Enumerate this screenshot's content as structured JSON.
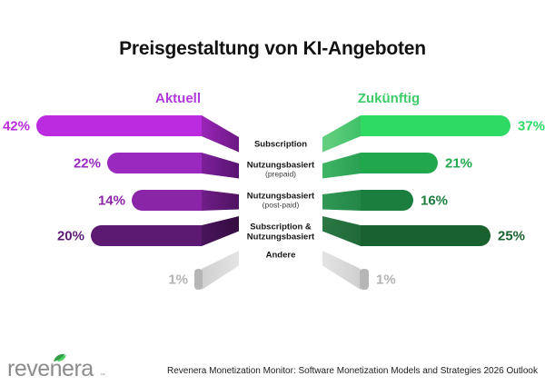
{
  "title": "Preisgestaltung von KI-Angeboten",
  "columns": {
    "left": {
      "header": "Aktuell",
      "color": "#b138de"
    },
    "right": {
      "header": "Zukünftig",
      "color": "#3ecb69"
    }
  },
  "rows": [
    {
      "category": {
        "lines": [
          "Subscription"
        ],
        "sub": ""
      },
      "left": {
        "pct": "42%",
        "color": "#bb2ce0",
        "fold": [
          "#9a25b8",
          "#6b1982"
        ],
        "gray": false
      },
      "right": {
        "pct": "37%",
        "color": "#2ed964",
        "fold": [
          "#67d082",
          "#3fc167"
        ],
        "gray": false
      }
    },
    {
      "category": {
        "lines": [
          "Nutzungsbasiert"
        ],
        "sub": "(prepaid)"
      },
      "left": {
        "pct": "22%",
        "color": "#9a29bf",
        "fold": [
          "#7d1f9b",
          "#581470"
        ],
        "gray": false
      },
      "right": {
        "pct": "21%",
        "color": "#21a84d",
        "fold": [
          "#3db565",
          "#2aa052"
        ],
        "gray": false
      }
    },
    {
      "category": {
        "lines": [
          "Nutzungsbasiert"
        ],
        "sub": "(post-paid)"
      },
      "left": {
        "pct": "14%",
        "color": "#8b25a8",
        "fold": [
          "#701e88",
          "#4e1260"
        ],
        "gray": false
      },
      "right": {
        "pct": "16%",
        "color": "#1b7e3e",
        "fold": [
          "#309955",
          "#228647"
        ],
        "gray": false
      }
    },
    {
      "category": {
        "lines": [
          "Subscription &",
          "Nutzungsbasiert"
        ],
        "sub": ""
      },
      "left": {
        "pct": "20%",
        "color": "#5c1a73",
        "fold": [
          "#49145b",
          "#340d41"
        ],
        "gray": false
      },
      "right": {
        "pct": "25%",
        "color": "#1a6130",
        "fold": [
          "#2c7844",
          "#1f6a38"
        ],
        "gray": false
      }
    },
    {
      "category": {
        "lines": [
          "Andere"
        ],
        "sub": ""
      },
      "left": {
        "pct": "1%",
        "color": "#b6b6b6",
        "fold": [
          "#cfcfcf",
          "#e4e4e4"
        ],
        "gray": true
      },
      "right": {
        "pct": "1%",
        "color": "#b6b6b6",
        "fold": [
          "#e4e4e4",
          "#cfcfcf"
        ],
        "gray": true
      }
    }
  ],
  "gray_label_color": "#b3b3b3",
  "footer": {
    "logo_text": "revenera",
    "logo_mark": "™",
    "source": "Revenera Monetization Monitor: Software Monetization Models and Strategies 2026 Outlook"
  },
  "chart_data": {
    "type": "bar",
    "variant": "diverging-butterfly-ribbon",
    "title": "Preisgestaltung von KI-Angeboten",
    "categories": [
      "Subscription",
      "Nutzungsbasiert (prepaid)",
      "Nutzungsbasiert (post-paid)",
      "Subscription & Nutzungsbasiert",
      "Andere"
    ],
    "series": [
      {
        "name": "Aktuell",
        "values": [
          42,
          22,
          14,
          20,
          1
        ],
        "color": "#bb2ce0"
      },
      {
        "name": "Zukünftig",
        "values": [
          37,
          21,
          16,
          25,
          1
        ],
        "color": "#2ed964"
      }
    ],
    "unit": "%",
    "legend_position": "top",
    "grid": false,
    "axes": "none (data labels only)"
  }
}
